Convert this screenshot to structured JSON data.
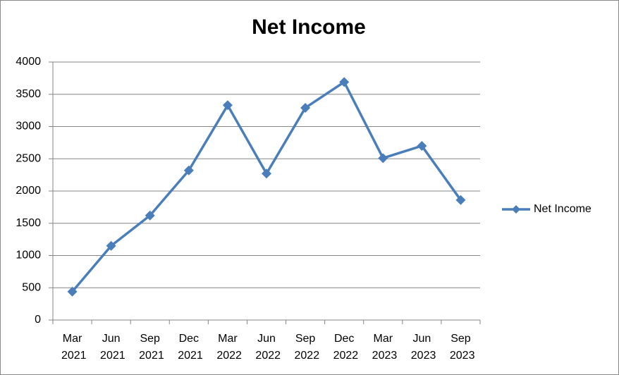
{
  "chart_data": {
    "type": "line",
    "title": "Net Income",
    "categories": [
      "Mar 2021",
      "Jun 2021",
      "Sep 2021",
      "Dec 2021",
      "Mar 2022",
      "Jun 2022",
      "Sep 2022",
      "Dec 2022",
      "Mar 2023",
      "Jun 2023",
      "Sep 2023"
    ],
    "series": [
      {
        "name": "Net Income",
        "color": "#4a7ebb",
        "values": [
          440,
          1150,
          1620,
          2320,
          3330,
          2270,
          3290,
          3690,
          2510,
          2700,
          1860
        ]
      }
    ],
    "ylim": [
      0,
      4000
    ],
    "yticks": [
      0,
      500,
      1000,
      1500,
      2000,
      2500,
      3000,
      3500,
      4000
    ],
    "grid": true,
    "legend": "right"
  }
}
